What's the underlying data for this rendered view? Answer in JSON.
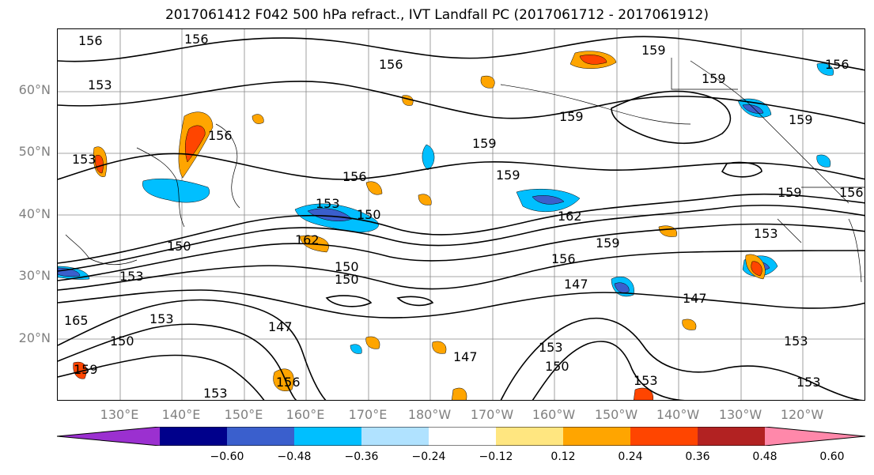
{
  "title": "2017061412 F042 500 hPa refract., IVT Landfall PC (2017061712 - 2017061912)",
  "lat_labels": [
    "60°N",
    "50°N",
    "40°N",
    "30°N",
    "20°N"
  ],
  "lon_labels": [
    "130°E",
    "140°E",
    "150°E",
    "160°E",
    "170°E",
    "180°W",
    "170°W",
    "160°W",
    "150°W",
    "140°W",
    "130°W",
    "120°W"
  ],
  "contour_labels": [
    "156",
    "156",
    "156",
    "159",
    "159",
    "159",
    "159",
    "159",
    "159",
    "156",
    "153",
    "153",
    "156",
    "156",
    "153",
    "153",
    "150",
    "150",
    "162",
    "162",
    "159",
    "156",
    "150",
    "150",
    "147",
    "147",
    "147",
    "153",
    "153",
    "153",
    "150",
    "150",
    "147",
    "153",
    "153",
    "159",
    "156",
    "153",
    "153",
    "165",
    "159",
    "156"
  ],
  "colorbar": {
    "ticks": [
      "−0.60",
      "−0.48",
      "−0.36",
      "−0.24",
      "−0.12",
      "0.12",
      "0.24",
      "0.36",
      "0.48",
      "0.60"
    ],
    "colors": [
      "#9b30d0",
      "#00008b",
      "#3a5fcd",
      "#00bfff",
      "#b0e2ff",
      "#ffffff",
      "#ffe680",
      "#ffa500",
      "#ff4500",
      "#b22222",
      "#ff88aa"
    ]
  }
}
